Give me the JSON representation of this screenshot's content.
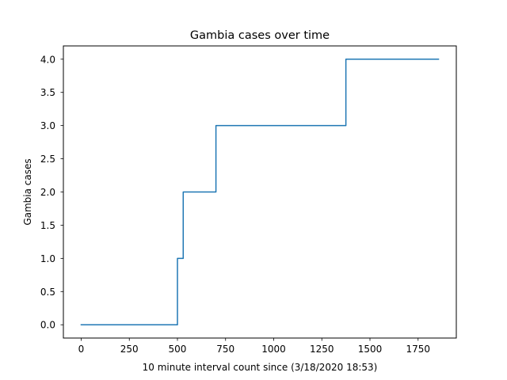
{
  "chart_data": {
    "type": "line",
    "title": "Gambia cases over time",
    "xlabel": "10 minute interval count since (3/18/2020 18:53)",
    "ylabel": "Gambia cases",
    "xlim": [
      -92.5,
      1948.5
    ],
    "ylim": [
      -0.2,
      4.2
    ],
    "x_ticks": [
      0,
      250,
      500,
      750,
      1000,
      1250,
      1500,
      1750
    ],
    "x_tick_labels": [
      "0",
      "250",
      "500",
      "750",
      "1000",
      "1250",
      "1500",
      "1750"
    ],
    "y_ticks": [
      0,
      0.5,
      1,
      1.5,
      2,
      2.5,
      3,
      3.5,
      4
    ],
    "y_tick_labels": [
      "0.0",
      "0.5",
      "1.0",
      "1.5",
      "2.0",
      "2.5",
      "3.0",
      "3.5",
      "4.0"
    ],
    "grid": false,
    "series": [
      {
        "color": "#1f77b4",
        "step": true,
        "x": [
          0,
          500,
          500,
          530,
          530,
          700,
          700,
          1375,
          1375,
          1856
        ],
        "y": [
          0,
          0,
          1,
          1,
          2,
          2,
          3,
          3,
          4,
          4
        ]
      }
    ]
  }
}
